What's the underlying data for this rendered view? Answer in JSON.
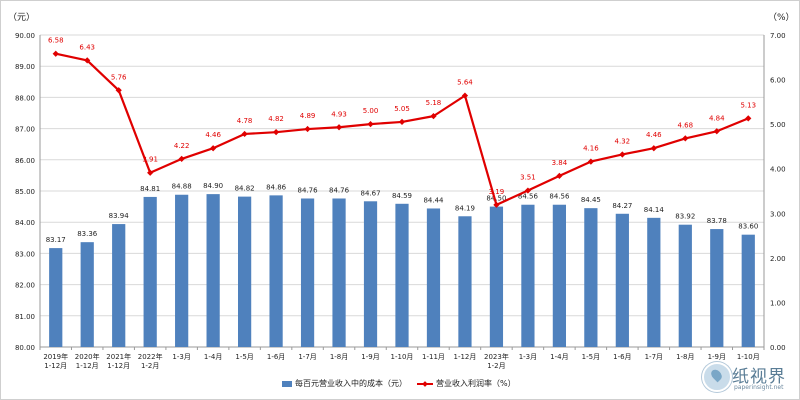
{
  "chart_data": {
    "type": "bar+line",
    "title": "",
    "categories": [
      [
        "2019年",
        "1-12月"
      ],
      [
        "2020年",
        "1-12月"
      ],
      [
        "2021年",
        "1-12月"
      ],
      [
        "2022年",
        "1-2月"
      ],
      [
        "1-3月"
      ],
      [
        "1-4月"
      ],
      [
        "1-5月"
      ],
      [
        "1-6月"
      ],
      [
        "1-7月"
      ],
      [
        "1-8月"
      ],
      [
        "1-9月"
      ],
      [
        "1-10月"
      ],
      [
        "1-11月"
      ],
      [
        "1-12月"
      ],
      [
        "2023年",
        "1-2月"
      ],
      [
        "1-3月"
      ],
      [
        "1-4月"
      ],
      [
        "1-5月"
      ],
      [
        "1-6月"
      ],
      [
        "1-7月"
      ],
      [
        "1-8月"
      ],
      [
        "1-9月"
      ],
      [
        "1-10月"
      ]
    ],
    "series": [
      {
        "name": "每百元营业收入中的成本（元）",
        "type": "bar",
        "axis": "left",
        "color": "#4f81bd",
        "values": [
          83.17,
          83.36,
          83.94,
          84.81,
          84.88,
          84.9,
          84.82,
          84.86,
          84.76,
          84.76,
          84.67,
          84.59,
          84.44,
          84.19,
          84.5,
          84.56,
          84.56,
          84.45,
          84.27,
          84.14,
          83.92,
          83.78,
          83.6
        ],
        "labels": [
          "83.17",
          "83.36",
          "83.94",
          "84.81",
          "84.88",
          "84.90",
          "84.82",
          "84.86",
          "84.76",
          "84.76",
          "84.67",
          "84.59",
          "84.44",
          "84.19",
          "84.50",
          "84.56",
          "84.56",
          "84.45",
          "84.27",
          "84.14",
          "83.92",
          "83.78",
          "83.60"
        ]
      },
      {
        "name": "营业收入利润率（%）",
        "type": "line",
        "axis": "right",
        "color": "#e00000",
        "values": [
          6.58,
          6.43,
          5.76,
          3.91,
          4.22,
          4.46,
          4.78,
          4.82,
          4.89,
          4.93,
          5.0,
          5.05,
          5.18,
          5.64,
          3.19,
          3.51,
          3.84,
          4.16,
          4.32,
          4.46,
          4.68,
          4.84,
          5.13
        ],
        "labels": [
          "6.58",
          "6.43",
          "5.76",
          "3.91",
          "4.22",
          "4.46",
          "4.78",
          "4.82",
          "4.89",
          "4.93",
          "5.00",
          "5.05",
          "5.18",
          "5.64",
          "3.19",
          "3.51",
          "3.84",
          "4.16",
          "4.32",
          "4.46",
          "4.68",
          "4.84",
          "5.13"
        ]
      }
    ],
    "y_left": {
      "unit": "（元）",
      "min": 80,
      "max": 90,
      "ticks": [
        "80.00",
        "81.00",
        "82.00",
        "83.00",
        "84.00",
        "85.00",
        "86.00",
        "87.00",
        "88.00",
        "89.00",
        "90.00"
      ]
    },
    "y_right": {
      "unit": "（%）",
      "min": 0,
      "max": 7,
      "ticks": [
        "0.00",
        "1.00",
        "2.00",
        "3.00",
        "4.00",
        "5.00",
        "6.00",
        "7.00"
      ]
    },
    "grid": true,
    "legend": "bottom-center"
  },
  "legend_items": [
    "每百元营业收入中的成本（元）",
    "营业收入利润率（%）"
  ],
  "watermark": {
    "title": "纸视界",
    "url": "paperinsight.net"
  }
}
